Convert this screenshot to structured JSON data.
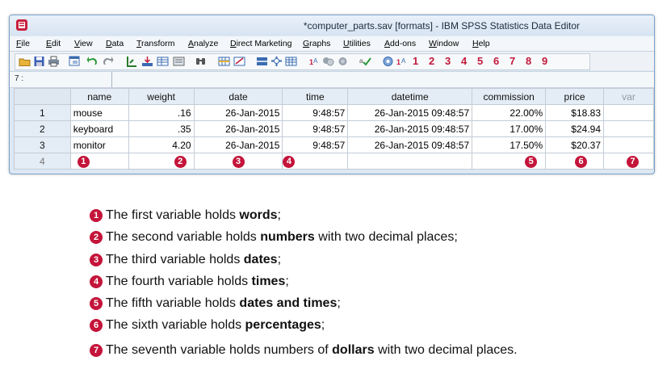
{
  "window": {
    "title": "*computer_parts.sav [formats] - IBM SPSS Statistics Data Editor"
  },
  "menu": [
    "File",
    "Edit",
    "View",
    "Data",
    "Transform",
    "Analyze",
    "Direct Marketing",
    "Graphs",
    "Utilities",
    "Add-ons",
    "Window",
    "Help"
  ],
  "toolbar": {
    "numbers": [
      "1",
      "2",
      "3",
      "4",
      "5",
      "6",
      "7",
      "8",
      "9"
    ]
  },
  "cell_reference": "7 :",
  "grid": {
    "columns": [
      "name",
      "weight",
      "date",
      "time",
      "datetime",
      "commission",
      "price",
      "var"
    ],
    "rows": [
      {
        "num": "1",
        "cells": [
          "mouse",
          ".16",
          "26-Jan-2015",
          "9:48:57",
          "26-Jan-2015 09:48:57",
          "22.00%",
          "$18.83"
        ]
      },
      {
        "num": "2",
        "cells": [
          "keyboard",
          ".35",
          "26-Jan-2015",
          "9:48:57",
          "26-Jan-2015 09:48:57",
          "17.00%",
          "$24.94"
        ]
      },
      {
        "num": "3",
        "cells": [
          "monitor",
          "4.20",
          "26-Jan-2015",
          "9:48:57",
          "26-Jan-2015 09:48:57",
          "17.50%",
          "$20.37"
        ]
      }
    ],
    "empty_row_num": "4",
    "markers": [
      "1",
      "2",
      "3",
      "4",
      "5",
      "6",
      "7"
    ]
  },
  "notes": [
    {
      "marker": "1",
      "pre": "The first variable holds ",
      "bold": "words",
      "post": ";"
    },
    {
      "marker": "2",
      "pre": "The second variable holds ",
      "bold": "numbers",
      "post": " with two decimal places;"
    },
    {
      "marker": "3",
      "pre": "The third variable holds ",
      "bold": "dates",
      "post": ";"
    },
    {
      "marker": "4",
      "pre": "The fourth variable holds ",
      "bold": "times",
      "post": ";"
    },
    {
      "marker": "5",
      "pre": "The fifth variable holds ",
      "bold": "dates and times",
      "post": ";"
    },
    {
      "marker": "6",
      "pre": "The sixth variable holds ",
      "bold": "percentages",
      "post": ";"
    },
    {
      "marker": "7",
      "pre": "The seventh variable holds numbers of ",
      "bold": "dollars",
      "post": " with two decimal places."
    }
  ],
  "colors": {
    "accent": "#c4143a",
    "header": "#e4ecf5",
    "window_border": "#7aa2c8"
  }
}
